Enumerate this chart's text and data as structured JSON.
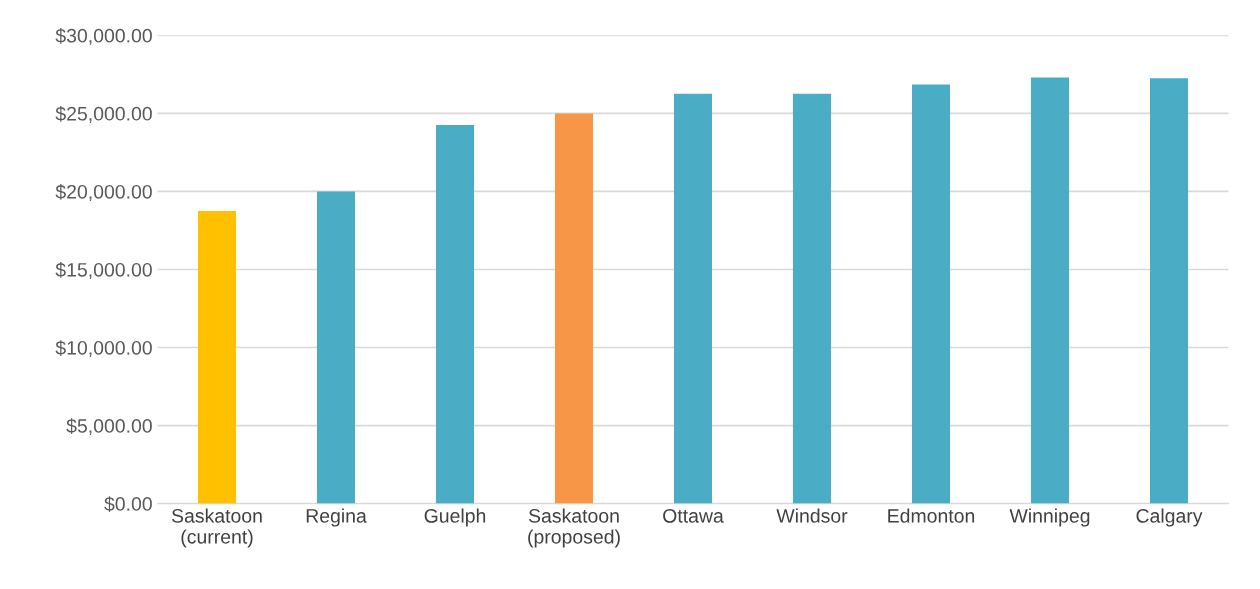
{
  "chart_data": {
    "type": "bar",
    "categories": [
      "Saskatoon\n(current)",
      "Regina",
      "Guelph",
      "Saskatoon\n(proposed)",
      "Ottawa",
      "Windsor",
      "Edmonton",
      "Winnipeg",
      "Calgary"
    ],
    "values": [
      18750,
      20000,
      24250,
      25000,
      26250,
      26250,
      26850,
      27300,
      27250
    ],
    "colors": [
      "#ffc000",
      "#4bacc6",
      "#4bacc6",
      "#f79646",
      "#4bacc6",
      "#4bacc6",
      "#4bacc6",
      "#4bacc6",
      "#4bacc6"
    ],
    "ylim": [
      0,
      30000
    ],
    "yticks": [
      {
        "value": 0,
        "label": "$0.00"
      },
      {
        "value": 5000,
        "label": "$5,000.00"
      },
      {
        "value": 10000,
        "label": "$10,000.00"
      },
      {
        "value": 15000,
        "label": "$15,000.00"
      },
      {
        "value": 20000,
        "label": "$20,000.00"
      },
      {
        "value": 25000,
        "label": "$25,000.00"
      },
      {
        "value": 30000,
        "label": "$30,000.00"
      }
    ],
    "grid": "y"
  }
}
